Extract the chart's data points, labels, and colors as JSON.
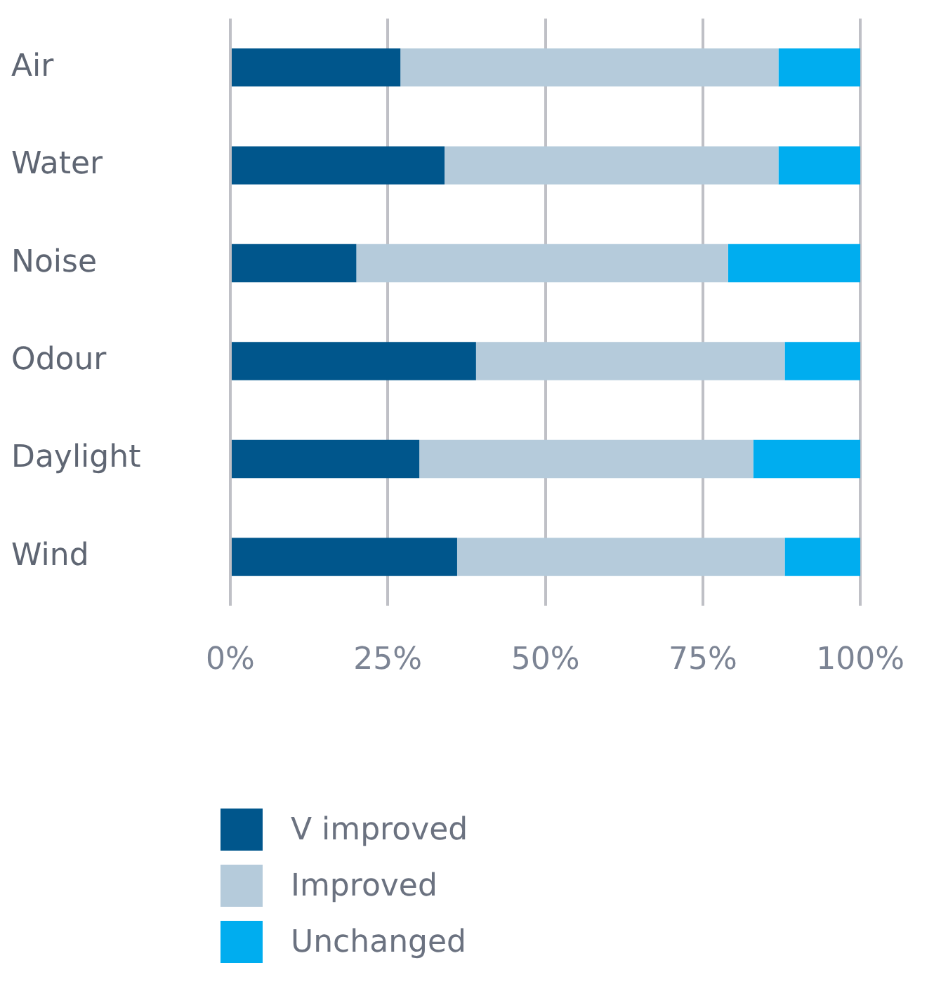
{
  "chart_data": {
    "type": "bar",
    "orientation": "horizontal",
    "stacked": true,
    "categories": [
      "Air",
      "Water",
      "Noise",
      "Odour",
      "Daylight",
      "Wind"
    ],
    "series": [
      {
        "name": "V improved",
        "color": "#00568c",
        "values": [
          27,
          34,
          20,
          39,
          30,
          36
        ]
      },
      {
        "name": "Improved",
        "color": "#b5cbdb",
        "values": [
          60,
          53,
          59,
          49,
          53,
          52
        ]
      },
      {
        "name": "Unchanged",
        "color": "#00adef",
        "values": [
          13,
          13,
          21,
          12,
          17,
          12
        ]
      }
    ],
    "xlim": [
      0,
      100
    ],
    "xticks": [
      {
        "value": 0,
        "label": "0%"
      },
      {
        "value": 25,
        "label": "25%"
      },
      {
        "value": 50,
        "label": "50%"
      },
      {
        "value": 75,
        "label": "75%"
      },
      {
        "value": 100,
        "label": "100%"
      }
    ],
    "grid": "x",
    "legend": "bottom"
  }
}
